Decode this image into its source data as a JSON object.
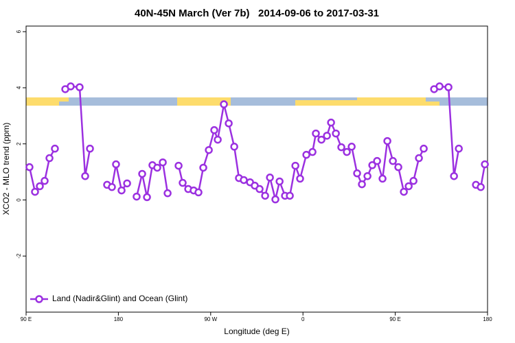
{
  "chart_data": {
    "type": "line",
    "title": "40N-45N March (Ver 7b)   2014-09-06 to 2017-03-31",
    "x_label": "Longitude (deg E)",
    "y_label": "XCO2 - MLO trend (ppm)",
    "xlim": [
      90,
      540
    ],
    "xticks": [
      {
        "value": 90,
        "label": "90 E"
      },
      180,
      {
        "value": 270,
        "label": "90 W"
      },
      {
        "value": 360,
        "label": "0"
      },
      {
        "value": 450,
        "label": "90 E"
      },
      {
        "value": 540,
        "label": "180"
      }
    ],
    "ylim": [
      -4,
      6.2
    ],
    "yticks": [
      -2,
      0,
      2,
      4,
      6
    ],
    "legend": "bottom-left",
    "x": [
      93.3,
      98.7,
      103.4,
      108.1,
      112.8,
      118.1,
      null,
      128.2,
      133.5,
      142.2,
      147.6,
      152.3,
      null,
      169.0,
      173.7,
      177.7,
      183.1,
      188.5,
      null,
      197.8,
      203.2,
      207.9,
      213.2,
      217.9,
      223.3,
      228.0,
      null,
      238.7,
      242.7,
      248.1,
      253.4,
      258.1,
      262.8,
      268.2,
      273.5,
      276.9,
      282.9,
      287.6,
      293.0,
      297.6,
      302.3,
      308.4,
      313.0,
      317.7,
      323.1,
      327.8,
      333.1,
      337.2,
      342.5,
      347.2,
      352.6,
      357.2,
      363.3,
      369.3,
      372.6,
      378.0,
      383.4,
      387.4,
      392.1,
      397.4,
      402.8,
      407.5,
      412.8,
      417.5,
      422.9,
      427.6,
      432.3,
      437.6,
      442.3,
      447.7,
      453.0,
      458.4,
      463.1,
      467.8,
      473.1,
      477.8,
      null,
      487.9,
      493.2,
      501.9,
      507.3,
      512.0,
      null,
      528.7,
      533.4,
      537.4
    ],
    "series": [
      {
        "name": "Land (Nadir&Glint) and Ocean (Glint)",
        "color": "#9b30e0",
        "values": [
          1.17,
          0.29,
          0.49,
          0.68,
          1.49,
          1.83,
          null,
          3.95,
          4.05,
          4.02,
          0.85,
          1.83,
          null,
          0.54,
          0.46,
          1.27,
          0.34,
          0.59,
          null,
          0.12,
          0.93,
          0.1,
          1.24,
          1.15,
          1.34,
          0.24,
          null,
          1.22,
          0.61,
          0.39,
          0.34,
          0.27,
          1.15,
          1.78,
          2.49,
          2.15,
          3.41,
          2.73,
          1.9,
          0.78,
          0.71,
          0.63,
          0.51,
          0.39,
          0.15,
          0.8,
          0.02,
          0.66,
          0.15,
          0.15,
          1.22,
          0.76,
          1.61,
          1.71,
          2.37,
          2.15,
          2.29,
          2.76,
          2.37,
          1.88,
          1.71,
          1.9,
          0.95,
          0.56,
          0.85,
          1.24,
          1.39,
          0.76,
          2.1,
          1.39,
          1.17,
          0.29,
          0.49,
          0.68,
          1.49,
          1.83,
          null,
          3.95,
          4.05,
          4.02,
          0.85,
          1.83,
          null,
          0.54,
          0.46,
          1.27
        ]
      }
    ]
  }
}
